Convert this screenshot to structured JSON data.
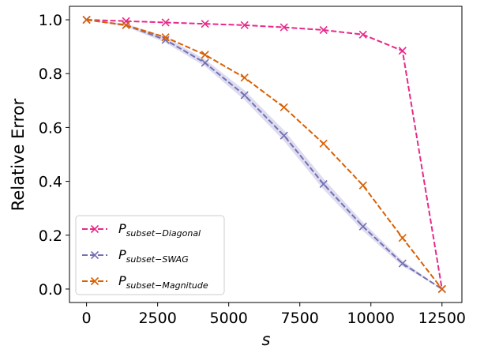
{
  "chart_data": {
    "type": "line",
    "title": "",
    "xlabel": "s",
    "ylabel": "Relative Error",
    "xlim": [
      -600,
      13200
    ],
    "ylim": [
      -0.05,
      1.05
    ],
    "xticks": [
      0,
      2500,
      5000,
      7500,
      10000,
      12500
    ],
    "xtick_labels": [
      "0",
      "2500",
      "5000",
      "7500",
      "10000",
      "12500"
    ],
    "yticks": [
      0.0,
      0.2,
      0.4,
      0.6,
      0.8,
      1.0
    ],
    "ytick_labels": [
      "0.0",
      "0.2",
      "0.4",
      "0.6",
      "0.8",
      "1.0"
    ],
    "grid": false,
    "legend_position": "lower-left",
    "x": [
      0,
      1389,
      2778,
      4167,
      5556,
      6944,
      8333,
      9722,
      11111,
      12500
    ],
    "series": [
      {
        "name": "Diagonal",
        "legend_main": "P",
        "legend_sub": "subset−Diagonal",
        "color": "#e7298a",
        "marker": "x",
        "linestyle": "dashed",
        "values": [
          1.0,
          0.995,
          0.99,
          0.985,
          0.98,
          0.972,
          0.962,
          0.945,
          0.885,
          0.0
        ]
      },
      {
        "name": "SWAG",
        "legend_main": "P",
        "legend_sub": "subset−SWAG",
        "color": "#7570b3",
        "band_color": "#cfcdea",
        "marker": "x",
        "linestyle": "dashed",
        "values": [
          1.0,
          0.98,
          0.925,
          0.84,
          0.72,
          0.57,
          0.39,
          0.232,
          0.095,
          0.0
        ],
        "band": [
          0.0,
          0.006,
          0.01,
          0.013,
          0.018,
          0.02,
          0.02,
          0.016,
          0.01,
          0.0
        ]
      },
      {
        "name": "Magnitude",
        "legend_main": "P",
        "legend_sub": "subset−Magnitude",
        "color": "#d95f02",
        "marker": "x",
        "linestyle": "dashed",
        "values": [
          1.0,
          0.98,
          0.935,
          0.87,
          0.785,
          0.675,
          0.54,
          0.385,
          0.19,
          0.0
        ]
      }
    ]
  }
}
